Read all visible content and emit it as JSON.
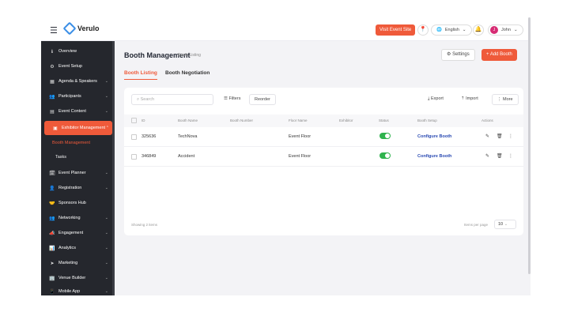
{
  "header": {
    "menu_icon": "hamburger-icon",
    "logo_text": "Verulo",
    "visit_button": "Visit Event Site",
    "language": "English",
    "user_name": "John",
    "user_initial": "J"
  },
  "sidebar": {
    "items": [
      {
        "label": "Overview",
        "icon": "info-icon"
      },
      {
        "label": "Event Setup",
        "icon": "gear-icon"
      },
      {
        "label": "Agenda & Speakers",
        "icon": "calendar-icon"
      },
      {
        "label": "Participants",
        "icon": "people-icon"
      },
      {
        "label": "Event Content",
        "icon": "content-icon"
      },
      {
        "label": "Exhibitor Management",
        "icon": "booth-icon"
      },
      {
        "label": "Booth Management",
        "icon": "none"
      },
      {
        "label": "Tasks",
        "icon": "none"
      },
      {
        "label": "Event Planner",
        "icon": "planner-icon"
      },
      {
        "label": "Registration",
        "icon": "user-plus-icon"
      },
      {
        "label": "Sponsors Hub",
        "icon": "sponsor-icon"
      },
      {
        "label": "Networking",
        "icon": "network-icon"
      },
      {
        "label": "Engagement",
        "icon": "megaphone-icon"
      },
      {
        "label": "Analytics",
        "icon": "chart-icon"
      },
      {
        "label": "Marketing",
        "icon": "send-icon"
      },
      {
        "label": "Venue Builder",
        "icon": "building-icon"
      },
      {
        "label": "Mobile App",
        "icon": "phone-icon"
      }
    ]
  },
  "page": {
    "title": "Booth Management",
    "breadcrumb": "Booth Listing",
    "settings_label": "Settings",
    "add_label": "+ Add Booth",
    "tabs": [
      "Booth Listing",
      "Booth Negotiation"
    ]
  },
  "toolbar": {
    "search_placeholder": "Search",
    "filters_label": "Filters",
    "reorder_label": "Reorder",
    "export_label": "Export",
    "import_label": "Import",
    "more_label": "More"
  },
  "table": {
    "columns": [
      "ID",
      "Booth Name",
      "Booth Number",
      "Floor Name",
      "Exhibitor",
      "Status",
      "Booth Setup",
      "Actions"
    ],
    "rows": [
      {
        "id": "325636",
        "name": "TechNova",
        "number": "",
        "floor": "Event Floor",
        "exhibitor": "",
        "setup": "Configure Booth",
        "status_on": true
      },
      {
        "id": "346849",
        "name": "Accident",
        "number": "",
        "floor": "Event Floor",
        "exhibitor": "",
        "setup": "Configure Booth",
        "status_on": true
      }
    ],
    "footer_left": "Showing 2 items",
    "footer_right": "Items per page",
    "per_page": "10"
  },
  "colors": {
    "accent": "#ef5a3a",
    "sidebar_bg": "#25272d",
    "toggle_on": "#2fb34d",
    "link": "#2b4bb3"
  }
}
